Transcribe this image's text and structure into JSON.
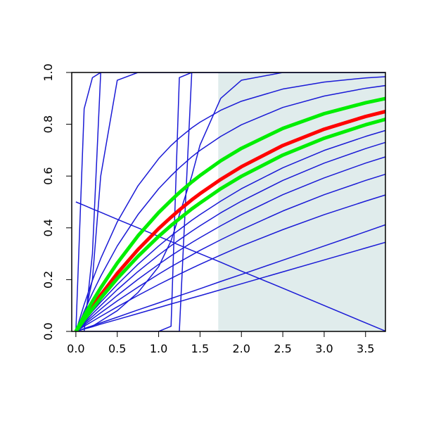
{
  "chart_data": {
    "type": "line",
    "x": [
      0,
      0.1,
      0.2,
      0.3,
      0.5,
      0.75,
      1.0,
      1.15,
      1.25,
      1.4,
      1.5,
      1.75,
      2.0,
      2.5,
      3.0,
      3.5,
      3.75
    ],
    "xlim": [
      -0.05,
      3.74
    ],
    "ylim": [
      0,
      1
    ],
    "xticks": [
      {
        "value": 0,
        "label": "0.0"
      },
      0.5,
      {
        "value": 1,
        "label": "1.0"
      },
      1.5,
      {
        "value": 2,
        "label": "2.0"
      },
      2.5,
      {
        "value": 3,
        "label": "3.0"
      },
      3.5
    ],
    "yticks": [
      {
        "value": 0,
        "label": "0.0"
      },
      0.2,
      0.4,
      0.6,
      0.8,
      {
        "value": 1,
        "label": "1.0"
      }
    ],
    "highlight": {
      "xrange": [
        1.72,
        3.8
      ],
      "color": "#e0ecec"
    },
    "series": [
      {
        "color": "#1a1ad6",
        "width": 1.5,
        "values": [
          0,
          0.02,
          0.039,
          0.058,
          0.095,
          0.139,
          0.181,
          0.205,
          0.221,
          0.244,
          0.259,
          0.295,
          0.33,
          0.393,
          0.451,
          0.503,
          0.528
        ]
      },
      {
        "color": "#1a1ad6",
        "width": 1.5,
        "values": [
          0,
          0.025,
          0.049,
          0.072,
          0.118,
          0.171,
          0.221,
          0.25,
          0.268,
          0.295,
          0.313,
          0.354,
          0.393,
          0.465,
          0.528,
          0.583,
          0.608
        ]
      },
      {
        "color": "#1a1ad6",
        "width": 1.5,
        "values": [
          0,
          0.03,
          0.058,
          0.086,
          0.139,
          0.201,
          0.259,
          0.292,
          0.313,
          0.343,
          0.362,
          0.408,
          0.451,
          0.528,
          0.593,
          0.65,
          0.675
        ]
      },
      {
        "color": "#1a1ad6",
        "width": 1.5,
        "values": [
          0,
          0.034,
          0.068,
          0.1,
          0.161,
          0.231,
          0.295,
          0.331,
          0.354,
          0.387,
          0.408,
          0.458,
          0.503,
          0.583,
          0.65,
          0.706,
          0.731
        ]
      },
      {
        "color": "#1a1ad6",
        "width": 1.5,
        "values": [
          0,
          0.039,
          0.077,
          0.113,
          0.181,
          0.259,
          0.33,
          0.369,
          0.393,
          0.429,
          0.451,
          0.503,
          0.551,
          0.632,
          0.699,
          0.753,
          0.777
        ]
      },
      {
        "color": "#1a1ad6",
        "width": 1.5,
        "values": [
          0,
          0.077,
          0.148,
          0.213,
          0.33,
          0.451,
          0.551,
          0.601,
          0.632,
          0.674,
          0.699,
          0.753,
          0.798,
          0.865,
          0.909,
          0.939,
          0.95
        ]
      },
      {
        "color": "#1a1ad6",
        "width": 1.5,
        "values": [
          0,
          0.104,
          0.197,
          0.281,
          0.423,
          0.562,
          0.667,
          0.718,
          0.747,
          0.786,
          0.808,
          0.854,
          0.889,
          0.936,
          0.963,
          0.979,
          0.984
        ]
      },
      {
        "color": "#1a1ad6",
        "width": 1.5,
        "values": [
          0,
          0.009,
          0.018,
          0.028,
          0.046,
          0.069,
          0.092,
          0.106,
          0.115,
          0.129,
          0.138,
          0.161,
          0.184,
          0.23,
          0.276,
          0.322,
          0.345
        ]
      },
      {
        "color": "#1a1ad6",
        "width": 1.5,
        "values": [
          0,
          0.011,
          0.022,
          0.033,
          0.055,
          0.083,
          0.11,
          0.127,
          0.138,
          0.154,
          0.165,
          0.193,
          0.22,
          0.275,
          0.33,
          0.385,
          0.413
        ]
      },
      {
        "color": "#1a1ad6",
        "width": 1.5,
        "values": [
          0.5,
          0.487,
          0.473,
          0.46,
          0.433,
          0.4,
          0.367,
          0.347,
          0.333,
          0.313,
          0.3,
          0.267,
          0.233,
          0.167,
          0.1,
          0.033,
          0
        ]
      },
      {
        "color": "#1a1ad6",
        "width": 1.5,
        "values": [
          0,
          0.86,
          0.98,
          1,
          1,
          1,
          1,
          1,
          1,
          1,
          1,
          1,
          1,
          1,
          1,
          1,
          1
        ]
      },
      {
        "color": "#1a1ad6",
        "width": 1.5,
        "values": [
          0,
          0,
          0.3,
          1,
          1,
          1,
          1,
          1,
          1,
          1,
          1,
          1,
          1,
          1,
          1,
          1,
          1
        ]
      },
      {
        "color": "#1a1ad6",
        "width": 1.5,
        "values": [
          0,
          0.05,
          0.2,
          0.6,
          0.97,
          1,
          1,
          1,
          1,
          1,
          1,
          1,
          1,
          1,
          1,
          1,
          1
        ]
      },
      {
        "color": "#1a1ad6",
        "width": 1.5,
        "values": [
          0,
          0,
          0,
          0,
          0,
          0,
          0,
          0.02,
          0.98,
          1,
          1,
          1,
          1,
          1,
          1,
          1,
          1
        ]
      },
      {
        "color": "#1a1ad6",
        "width": 1.5,
        "values": [
          0,
          0,
          0,
          0,
          0,
          0,
          0,
          0,
          0,
          1,
          1,
          1,
          1,
          1,
          1,
          1,
          1
        ]
      },
      {
        "color": "#1a1ad6",
        "width": 1.5,
        "values": [
          0,
          0.01,
          0.02,
          0.04,
          0.08,
          0.15,
          0.25,
          0.35,
          0.45,
          0.6,
          0.72,
          0.9,
          0.97,
          1,
          1,
          1,
          1
        ]
      },
      {
        "color": "#ff0000",
        "width": 5,
        "values": [
          0,
          0.049,
          0.096,
          0.141,
          0.224,
          0.316,
          0.397,
          0.441,
          0.469,
          0.508,
          0.532,
          0.587,
          0.636,
          0.718,
          0.781,
          0.83,
          0.85
        ]
      },
      {
        "color": "#00ee00",
        "width": 5,
        "values": [
          0,
          0.06,
          0.116,
          0.168,
          0.264,
          0.369,
          0.459,
          0.506,
          0.536,
          0.577,
          0.602,
          0.659,
          0.707,
          0.784,
          0.841,
          0.883,
          0.9
        ]
      },
      {
        "color": "#00ee00",
        "width": 5,
        "values": [
          0,
          0.045,
          0.087,
          0.128,
          0.204,
          0.29,
          0.367,
          0.409,
          0.435,
          0.473,
          0.496,
          0.551,
          0.599,
          0.681,
          0.746,
          0.798,
          0.82
        ]
      }
    ]
  }
}
